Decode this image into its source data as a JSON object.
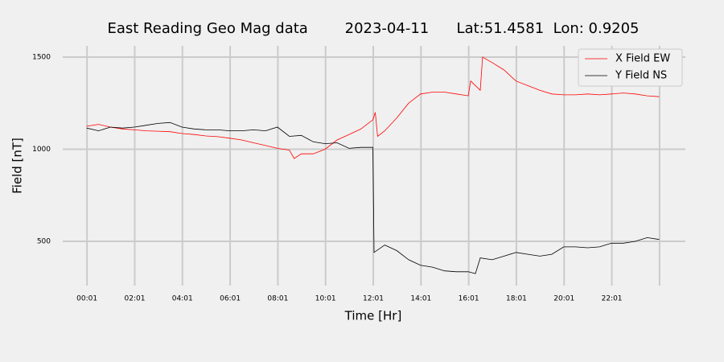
{
  "chart_data": {
    "type": "line",
    "title": "East Reading Geo Mag data        2023-04-11      Lat:51.4581  Lon: 0.9205",
    "x_label": "Time  [Hr]",
    "y_label": "Field  [nT]",
    "xlim": [
      -1,
      25.1
    ],
    "ylim": [
      260,
      1561
    ],
    "xticks": [
      {
        "value": 0.0167,
        "label": "00:01"
      },
      {
        "value": 2.0167,
        "label": "02:01"
      },
      {
        "value": 4.0167,
        "label": "04:01"
      },
      {
        "value": 6.0167,
        "label": "06:01"
      },
      {
        "value": 8.0167,
        "label": "08:01"
      },
      {
        "value": 10.0167,
        "label": "10:01"
      },
      {
        "value": 12.0167,
        "label": "12:01"
      },
      {
        "value": 14.0167,
        "label": "14:01"
      },
      {
        "value": 16.0167,
        "label": "16:01"
      },
      {
        "value": 18.0167,
        "label": "18:01"
      },
      {
        "value": 20.0167,
        "label": "20:01"
      },
      {
        "value": 22.0167,
        "label": "22:01"
      },
      {
        "value": 24.0167,
        "label": ""
      }
    ],
    "yticks": [
      500,
      1000,
      1500
    ],
    "grid": true,
    "legend": "upper right",
    "series": [
      {
        "name": "X Field EW",
        "color": "#ff0000",
        "x": [
          0,
          0.5,
          1,
          1.5,
          2,
          2.5,
          3,
          3.5,
          4,
          4.5,
          5,
          5.5,
          6,
          6.5,
          7,
          7.5,
          8,
          8.5,
          8.7,
          9,
          9.5,
          10,
          10.5,
          11,
          11.5,
          12,
          12.1,
          12.2,
          12.5,
          13,
          13.5,
          14,
          14.5,
          15,
          15.5,
          16,
          16.1,
          16.5,
          16.6,
          17,
          17.5,
          18,
          18.5,
          19,
          19.5,
          20,
          20.5,
          21,
          21.5,
          22,
          22.5,
          23,
          23.5,
          24
        ],
        "values": [
          1125,
          1135,
          1120,
          1110,
          1105,
          1100,
          1098,
          1095,
          1085,
          1080,
          1072,
          1068,
          1060,
          1050,
          1035,
          1020,
          1005,
          995,
          950,
          975,
          975,
          1000,
          1050,
          1080,
          1110,
          1160,
          1200,
          1070,
          1100,
          1170,
          1250,
          1300,
          1310,
          1310,
          1300,
          1290,
          1370,
          1320,
          1500,
          1470,
          1430,
          1370,
          1345,
          1320,
          1300,
          1295,
          1295,
          1300,
          1295,
          1300,
          1305,
          1300,
          1290,
          1285
        ]
      },
      {
        "name": "Y Field NS",
        "color": "#000000",
        "x": [
          0,
          0.5,
          1,
          1.5,
          2,
          2.5,
          3,
          3.5,
          4,
          4.5,
          5,
          5.5,
          6,
          6.5,
          7,
          7.5,
          8,
          8.5,
          9,
          9.5,
          10,
          10.5,
          11,
          11.5,
          12,
          12.05,
          12.5,
          13,
          13.5,
          14,
          14.5,
          15,
          15.5,
          16,
          16.3,
          16.5,
          17,
          17.5,
          18,
          18.5,
          19,
          19.5,
          20,
          20.5,
          21,
          21.5,
          22,
          22.5,
          23,
          23.5,
          24
        ],
        "values": [
          1115,
          1100,
          1120,
          1115,
          1120,
          1130,
          1140,
          1145,
          1120,
          1110,
          1105,
          1105,
          1100,
          1100,
          1105,
          1100,
          1120,
          1070,
          1075,
          1040,
          1030,
          1035,
          1005,
          1010,
          1010,
          440,
          480,
          450,
          400,
          370,
          360,
          340,
          335,
          335,
          325,
          410,
          400,
          420,
          440,
          430,
          420,
          430,
          470,
          470,
          465,
          470,
          490,
          490,
          500,
          520,
          510
        ]
      }
    ]
  }
}
